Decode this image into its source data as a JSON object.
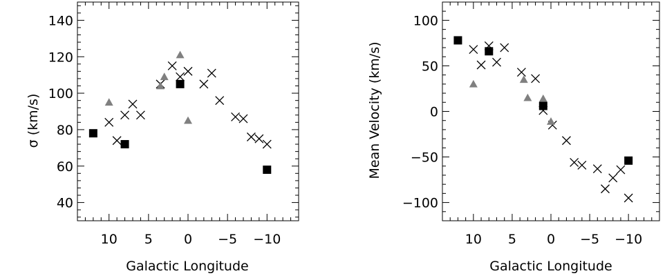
{
  "chart_data": [
    {
      "type": "scatter",
      "xlabel": "Galactic Longitude",
      "ylabel": "σ (km/s)",
      "xlim": [
        14,
        -14
      ],
      "ylim": [
        30,
        150
      ],
      "xticks": [
        10,
        5,
        0,
        -5,
        -10
      ],
      "yticks": [
        40,
        60,
        80,
        100,
        120,
        140
      ],
      "xtick_labels": [
        "10",
        "5",
        "0",
        "−5",
        "−10"
      ],
      "ytick_labels": [
        "40",
        "60",
        "80",
        "100",
        "120",
        "140"
      ],
      "grid": false,
      "series": [
        {
          "marker": "cross",
          "color": "#000000",
          "points": [
            [
              10.0,
              84
            ],
            [
              9.0,
              74
            ],
            [
              8.0,
              88
            ],
            [
              7.0,
              94
            ],
            [
              6.0,
              88
            ],
            [
              3.5,
              105
            ],
            [
              2.0,
              115
            ],
            [
              1.0,
              109
            ],
            [
              0.0,
              112
            ],
            [
              -2.0,
              105
            ],
            [
              -3.0,
              111
            ],
            [
              -4.0,
              96
            ],
            [
              -6.0,
              87
            ],
            [
              -7.0,
              86
            ],
            [
              -8.0,
              76
            ],
            [
              -9.0,
              75
            ],
            [
              -10.0,
              72
            ]
          ]
        },
        {
          "marker": "triangle",
          "color": "#808080",
          "points": [
            [
              10.0,
              95
            ],
            [
              3.5,
              104
            ],
            [
              3.0,
              109
            ],
            [
              1.0,
              121
            ],
            [
              0.0,
              85
            ]
          ]
        },
        {
          "marker": "square",
          "color": "#000000",
          "points": [
            [
              12.0,
              78
            ],
            [
              8.0,
              72
            ],
            [
              1.0,
              105
            ],
            [
              -10.0,
              58
            ]
          ]
        }
      ]
    },
    {
      "type": "scatter",
      "xlabel": "Galactic Longitude",
      "ylabel": "Mean Velocity (km/s)",
      "xlim": [
        14,
        -14
      ],
      "ylim": [
        -120,
        120
      ],
      "xticks": [
        10,
        5,
        0,
        -5,
        -10
      ],
      "yticks": [
        -100,
        -50,
        0,
        50,
        100
      ],
      "xtick_labels": [
        "10",
        "5",
        "0",
        "−5",
        "−10"
      ],
      "ytick_labels": [
        "−100",
        "−50",
        "0",
        "50",
        "100"
      ],
      "grid": false,
      "series": [
        {
          "marker": "cross",
          "color": "#000000",
          "points": [
            [
              10.0,
              68
            ],
            [
              9.0,
              51
            ],
            [
              8.0,
              72
            ],
            [
              7.0,
              54
            ],
            [
              6.0,
              70
            ],
            [
              3.8,
              43
            ],
            [
              2.0,
              36
            ],
            [
              1.0,
              1
            ],
            [
              -0.2,
              -15
            ],
            [
              -2.0,
              -32
            ],
            [
              -3.0,
              -56
            ],
            [
              -4.0,
              -59
            ],
            [
              -6.0,
              -63
            ],
            [
              -7.0,
              -85
            ],
            [
              -8.0,
              -73
            ],
            [
              -9.0,
              -64
            ],
            [
              -10.0,
              -95
            ]
          ]
        },
        {
          "marker": "triangle",
          "color": "#808080",
          "points": [
            [
              10.0,
              30
            ],
            [
              3.5,
              35
            ],
            [
              3.0,
              15
            ],
            [
              1.0,
              14
            ],
            [
              0.0,
              -11
            ]
          ]
        },
        {
          "marker": "square",
          "color": "#000000",
          "points": [
            [
              12.0,
              78
            ],
            [
              8.0,
              66
            ],
            [
              1.0,
              6
            ],
            [
              -10.0,
              -54
            ]
          ]
        }
      ]
    }
  ]
}
